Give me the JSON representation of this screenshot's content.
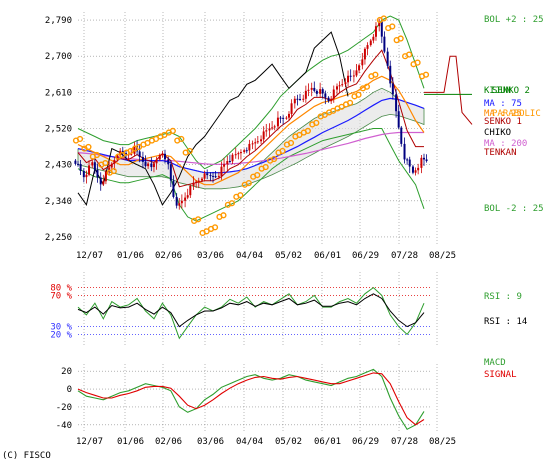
{
  "copyright": "(C) FISCO",
  "colors": {
    "price_up": "#cc0000",
    "price_down": "#000080",
    "bollinger": "#2e9e2e",
    "ichimoku_cloud": "#4a8a4a",
    "ma25": "#ff8800",
    "ma75": "#1a1aff",
    "ma200": "#d060d0",
    "chiko": "#000000",
    "tenkan": "#b00000",
    "kijun": "#008000",
    "parabolic": "#ff9900",
    "rsi9": "#2e9e2e",
    "rsi14": "#000000",
    "macd": "#2e9e2e",
    "signal": "#e00000",
    "rsi_upper_ref": "#e00000",
    "rsi_lower_ref": "#3030ff"
  },
  "chart_data": [
    {
      "type": "line",
      "subtype": "candlestick_with_indicators",
      "x_tick_labels": [
        "12/07",
        "01/06",
        "02/06",
        "03/06",
        "04/04",
        "05/02",
        "06/01",
        "06/29",
        "07/28",
        "08/25"
      ],
      "y_tick_labels": [
        "2,790",
        "2,700",
        "2,610",
        "2,520",
        "2,430",
        "2,340",
        "2,250"
      ],
      "ylim": [
        2230,
        2810
      ],
      "grid": true,
      "legend": [
        {
          "key": "bol_upper",
          "label": "BOL +2 : 25"
        },
        {
          "key": "kijun",
          "label": "KIJUN"
        },
        {
          "key": "senko2",
          "label": "SENKO 2"
        },
        {
          "key": "ma75",
          "label": "MA : 75"
        },
        {
          "key": "ma25",
          "label": "MA : 25"
        },
        {
          "key": "parabolic",
          "label": "PARABOLIC"
        },
        {
          "key": "senko1",
          "label": "SENKO 1"
        },
        {
          "key": "chiko",
          "label": "CHIKO"
        },
        {
          "key": "ma200",
          "label": "MA : 200"
        },
        {
          "key": "tenkan",
          "label": "TENKAN"
        },
        {
          "key": "bol_lower",
          "label": "BOL -2 : 25"
        }
      ],
      "series_summary": {
        "close": [
          2440,
          2400,
          2430,
          2385,
          2420,
          2460,
          2455,
          2470,
          2440,
          2420,
          2460,
          2430,
          2320,
          2350,
          2380,
          2400,
          2400,
          2410,
          2440,
          2450,
          2470,
          2480,
          2500,
          2520,
          2540,
          2550,
          2590,
          2600,
          2620,
          2610,
          2590,
          2620,
          2640,
          2650,
          2700,
          2740,
          2780,
          2680,
          2560,
          2450,
          2410,
          2440
        ],
        "ma25": [
          2480,
          2470,
          2460,
          2450,
          2440,
          2430,
          2430,
          2440,
          2445,
          2450,
          2455,
          2450,
          2430,
          2410,
          2390,
          2380,
          2380,
          2390,
          2400,
          2410,
          2430,
          2450,
          2470,
          2490,
          2510,
          2530,
          2545,
          2560,
          2575,
          2585,
          2590,
          2598,
          2605,
          2612,
          2625,
          2640,
          2650,
          2640,
          2615,
          2580,
          2540,
          2510
        ],
        "ma75": [
          2470,
          2465,
          2460,
          2455,
          2450,
          2445,
          2440,
          2440,
          2440,
          2440,
          2440,
          2435,
          2425,
          2420,
          2415,
          2410,
          2410,
          2410,
          2412,
          2415,
          2420,
          2428,
          2436,
          2445,
          2455,
          2465,
          2475,
          2487,
          2498,
          2510,
          2520,
          2530,
          2540,
          2552,
          2565,
          2578,
          2590,
          2595,
          2592,
          2585,
          2578,
          2570
        ],
        "ma200": [
          2460,
          2458,
          2456,
          2452,
          2450,
          2448,
          2445,
          2443,
          2441,
          2440,
          2440,
          2440,
          2438,
          2436,
          2434,
          2432,
          2431,
          2431,
          2432,
          2433,
          2435,
          2437,
          2440,
          2443,
          2446,
          2450,
          2454,
          2458,
          2463,
          2468,
          2473,
          2478,
          2483,
          2489,
          2495,
          2500,
          2505,
          2508,
          2510,
          2510,
          2510,
          2510
        ],
        "bol_upper": [
          2520,
          2510,
          2500,
          2490,
          2485,
          2480,
          2480,
          2490,
          2495,
          2500,
          2505,
          2510,
          2500,
          2470,
          2440,
          2420,
          2430,
          2440,
          2460,
          2480,
          2500,
          2520,
          2545,
          2570,
          2600,
          2620,
          2640,
          2660,
          2675,
          2690,
          2700,
          2705,
          2715,
          2730,
          2745,
          2760,
          2790,
          2800,
          2790,
          2740,
          2680,
          2620
        ],
        "bol_lower": [
          2420,
          2410,
          2400,
          2395,
          2390,
          2385,
          2385,
          2390,
          2395,
          2400,
          2405,
          2395,
          2330,
          2300,
          2290,
          2300,
          2310,
          2320,
          2330,
          2340,
          2360,
          2380,
          2400,
          2420,
          2435,
          2450,
          2460,
          2470,
          2480,
          2490,
          2495,
          2500,
          2505,
          2510,
          2515,
          2520,
          2520,
          2480,
          2440,
          2410,
          2380,
          2320
        ],
        "parabolic": [
          2490,
          2470,
          2450,
          2430,
          2410,
          2450,
          2460,
          2470,
          2480,
          2490,
          2500,
          2510,
          2490,
          2460,
          2290,
          2260,
          2270,
          2300,
          2330,
          2350,
          2380,
          2400,
          2420,
          2440,
          2460,
          2480,
          2500,
          2510,
          2530,
          2550,
          2560,
          2570,
          2580,
          2600,
          2620,
          2650,
          2790,
          2770,
          2740,
          2700,
          2680,
          2650
        ],
        "chiko": [
          2360,
          2330,
          2420,
          2380,
          2470,
          2460,
          2440,
          2430,
          2420,
          2380,
          2330,
          2360,
          2400,
          2450,
          2480,
          2500,
          2530,
          2560,
          2590,
          2600,
          2630,
          2640,
          2660,
          2680,
          2650,
          2620,
          2640,
          2660,
          2720,
          2740,
          2760,
          2700,
          2600
        ]
      }
    },
    {
      "type": "line",
      "title": "RSI",
      "ylim": [
        0,
        100
      ],
      "reference_lines": [
        {
          "label": "80 %",
          "value": 80
        },
        {
          "label": "70 %",
          "value": 70
        },
        {
          "label": "30 %",
          "value": 30
        },
        {
          "label": "20 %",
          "value": 20
        }
      ],
      "series": [
        {
          "name": "RSI : 9",
          "color_key": "rsi9",
          "values": [
            55,
            45,
            60,
            40,
            62,
            55,
            58,
            66,
            50,
            40,
            60,
            45,
            15,
            30,
            45,
            55,
            50,
            55,
            65,
            60,
            68,
            55,
            62,
            58,
            65,
            72,
            58,
            62,
            70,
            55,
            55,
            62,
            66,
            60,
            72,
            80,
            70,
            45,
            30,
            20,
            35,
            60
          ]
        },
        {
          "name": "RSI : 14",
          "color_key": "rsi14",
          "values": [
            52,
            48,
            55,
            46,
            57,
            54,
            55,
            60,
            52,
            46,
            55,
            48,
            30,
            38,
            45,
            50,
            50,
            54,
            60,
            58,
            62,
            56,
            60,
            58,
            62,
            66,
            58,
            60,
            64,
            56,
            56,
            60,
            62,
            58,
            66,
            72,
            66,
            50,
            38,
            30,
            35,
            48
          ]
        }
      ]
    },
    {
      "type": "line",
      "title": "MACD",
      "y_tick_labels": [
        "20",
        "0",
        "-20",
        "-40"
      ],
      "ylim": [
        -48,
        28
      ],
      "series": [
        {
          "name": "MACD",
          "color_key": "macd",
          "values": [
            -2,
            -8,
            -10,
            -12,
            -8,
            -4,
            -2,
            2,
            6,
            4,
            2,
            -2,
            -20,
            -26,
            -22,
            -12,
            -6,
            2,
            6,
            10,
            14,
            16,
            12,
            10,
            12,
            16,
            14,
            10,
            8,
            6,
            4,
            8,
            12,
            14,
            18,
            22,
            14,
            -10,
            -30,
            -45,
            -40,
            -25
          ]
        },
        {
          "name": "SIGNAL",
          "color_key": "signal",
          "values": [
            0,
            -4,
            -7,
            -10,
            -10,
            -7,
            -5,
            -2,
            2,
            3,
            3,
            1,
            -8,
            -18,
            -22,
            -18,
            -12,
            -5,
            1,
            6,
            10,
            13,
            14,
            12,
            11,
            13,
            14,
            12,
            10,
            8,
            6,
            6,
            9,
            12,
            15,
            18,
            17,
            6,
            -14,
            -32,
            -40,
            -34
          ]
        }
      ]
    }
  ]
}
